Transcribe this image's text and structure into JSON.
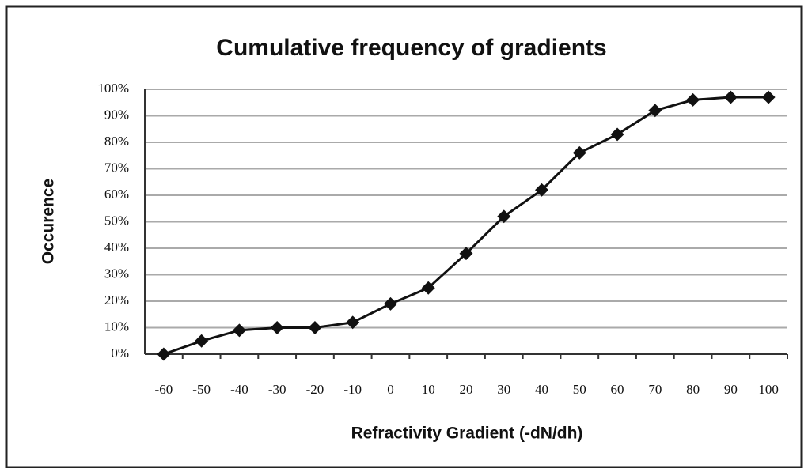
{
  "chart_data": {
    "type": "line",
    "title": "Cumulative frequency of gradients",
    "x_label": "Refractivity Gradient (-dN/dh)",
    "y_label": "Occurence",
    "categories": [
      "-60",
      "-50",
      "-40",
      "-30",
      "-20",
      "-10",
      "0",
      "10",
      "20",
      "30",
      "40",
      "50",
      "60",
      "70",
      "80",
      "90",
      "100"
    ],
    "series": [
      {
        "name": "Cumulative frequency",
        "color": "#111111",
        "values": [
          0,
          5,
          9,
          10,
          10,
          12,
          19,
          25,
          38,
          52,
          62,
          76,
          83,
          92,
          96,
          97,
          97
        ]
      }
    ],
    "ylim": [
      0,
      100
    ],
    "yticks": [
      {
        "value": 0,
        "label": "0%"
      },
      {
        "value": 10,
        "label": "10%"
      },
      {
        "value": 20,
        "label": "20%"
      },
      {
        "value": 30,
        "label": "30%"
      },
      {
        "value": 40,
        "label": "40%"
      },
      {
        "value": 50,
        "label": "50%"
      },
      {
        "value": 60,
        "label": "60%"
      },
      {
        "value": 70,
        "label": "70%"
      },
      {
        "value": 80,
        "label": "80%"
      },
      {
        "value": 90,
        "label": "90%"
      },
      {
        "value": 100,
        "label": "100%"
      }
    ],
    "grid": true
  }
}
